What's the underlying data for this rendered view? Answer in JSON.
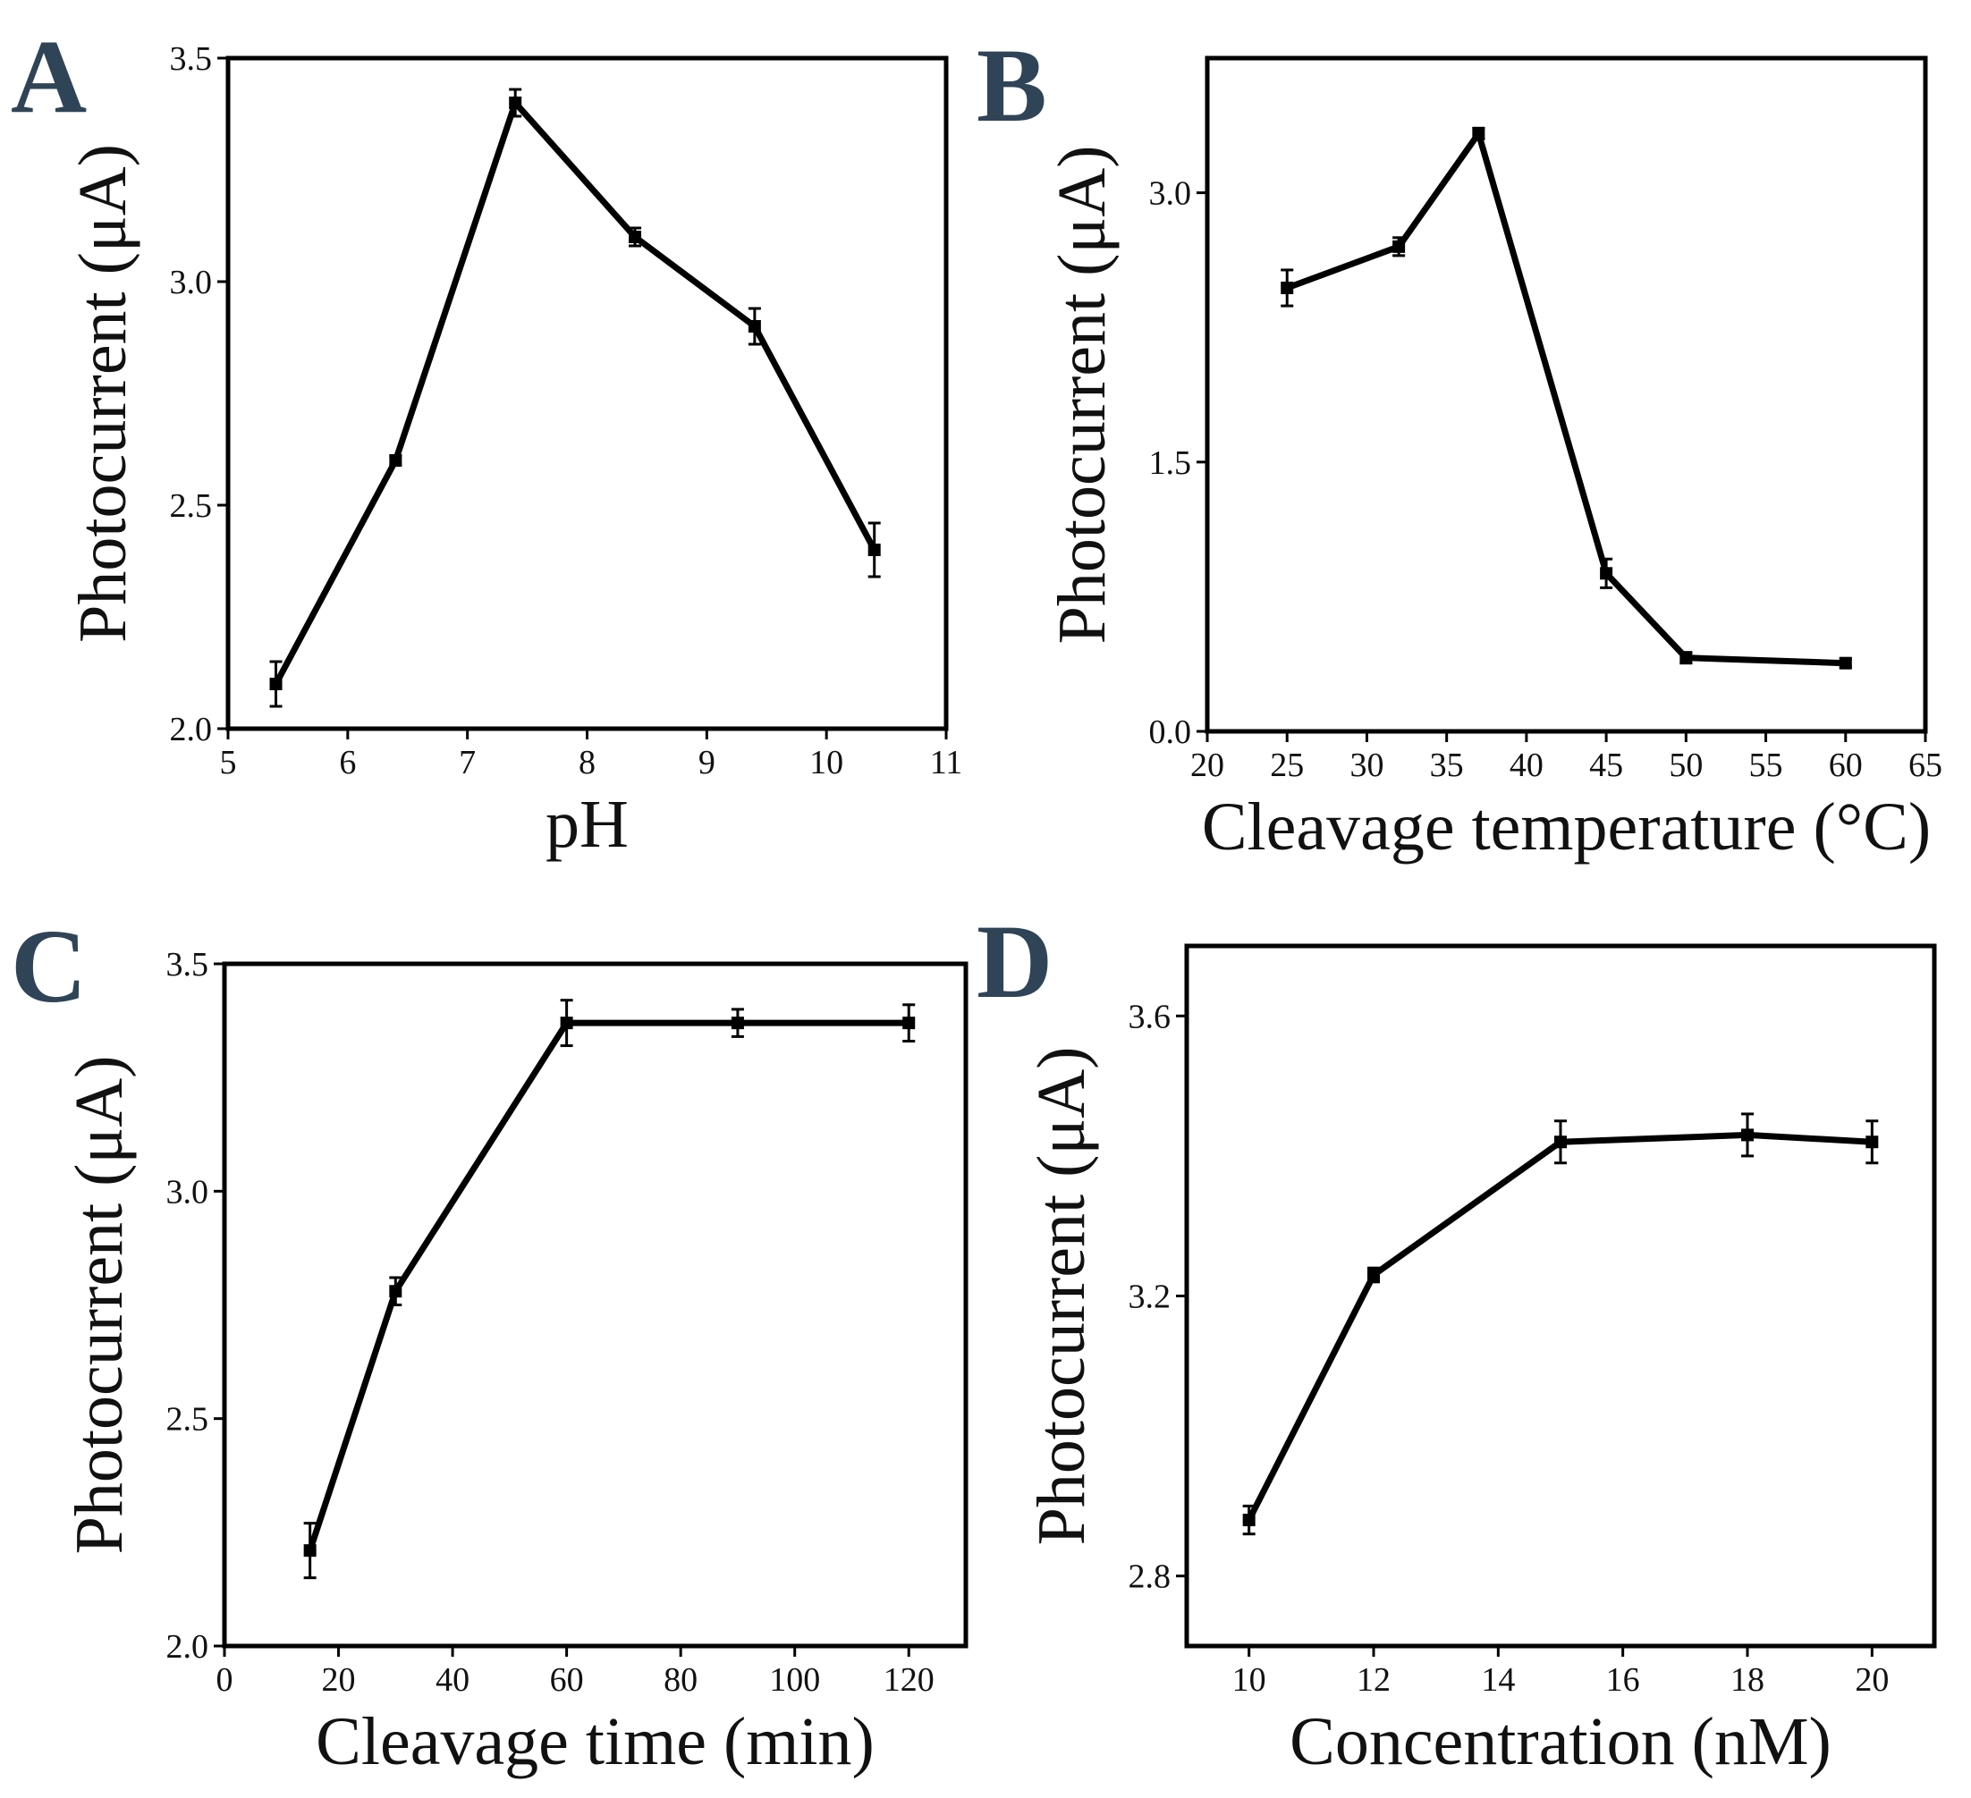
{
  "colors": {
    "line": "#000000",
    "panel_letter": "#2f4457",
    "background": "#ffffff"
  },
  "chart_data": [
    {
      "panel": "A",
      "type": "line",
      "xlabel": "pH",
      "ylabel": "Photocurrent (μA)",
      "xlim": [
        5,
        11
      ],
      "ylim": [
        2.0,
        3.5
      ],
      "xticks": [
        5,
        6,
        7,
        8,
        9,
        10,
        11
      ],
      "xtick_labels": [
        "5",
        "6",
        "7",
        "8",
        "9",
        "10",
        "11"
      ],
      "yticks": [
        2.0,
        2.5,
        3.0,
        3.5
      ],
      "ytick_labels": [
        "2.0",
        "2.5",
        "3.0",
        "3.5"
      ],
      "grid": false,
      "marker": "square",
      "series": [
        {
          "x": [
            5.4,
            6.4,
            7.4,
            8.4,
            9.4,
            10.4
          ],
          "y": [
            2.1,
            2.6,
            3.4,
            3.1,
            2.9,
            2.4
          ],
          "yerr": [
            0.05,
            0.01,
            0.03,
            0.02,
            0.04,
            0.06
          ]
        }
      ]
    },
    {
      "panel": "B",
      "type": "line",
      "xlabel": "Cleavage temperature (°C)",
      "ylabel": "Photocurrent (μA)",
      "xlim": [
        20,
        65
      ],
      "ylim": [
        0.0,
        3.75
      ],
      "xticks": [
        20,
        25,
        30,
        35,
        40,
        45,
        50,
        55,
        60,
        65
      ],
      "xtick_labels": [
        "20",
        "25",
        "30",
        "35",
        "40",
        "45",
        "50",
        "55",
        "60",
        "65"
      ],
      "yticks": [
        0.0,
        1.5,
        3.0
      ],
      "ytick_labels": [
        "0.0",
        "1.5",
        "3.0"
      ],
      "grid": false,
      "marker": "square",
      "series": [
        {
          "x": [
            25,
            32,
            37,
            45,
            50,
            60
          ],
          "y": [
            2.47,
            2.7,
            3.33,
            0.88,
            0.41,
            0.38
          ],
          "yerr": [
            0.1,
            0.05,
            0.03,
            0.08,
            0.03,
            0.02
          ]
        }
      ]
    },
    {
      "panel": "C",
      "type": "line",
      "xlabel": "Cleavage time (min)",
      "ylabel": "Photocurrent (μA)",
      "xlim": [
        0,
        130
      ],
      "ylim": [
        2.0,
        3.5
      ],
      "xticks": [
        0,
        20,
        40,
        60,
        80,
        100,
        120
      ],
      "xtick_labels": [
        "0",
        "20",
        "40",
        "60",
        "80",
        "100",
        "120"
      ],
      "yticks": [
        2.0,
        2.5,
        3.0,
        3.5
      ],
      "ytick_labels": [
        "2.0",
        "2.5",
        "3.0",
        "3.5"
      ],
      "grid": false,
      "marker": "square",
      "series": [
        {
          "x": [
            15,
            30,
            60,
            90,
            120
          ],
          "y": [
            2.21,
            2.78,
            3.37,
            3.37,
            3.37
          ],
          "yerr": [
            0.06,
            0.03,
            0.05,
            0.03,
            0.04
          ]
        }
      ]
    },
    {
      "panel": "D",
      "type": "line",
      "xlabel": "Concentration (nM)",
      "ylabel": "Photocurrent (μA)",
      "xlim": [
        9,
        21
      ],
      "ylim": [
        2.7,
        3.7
      ],
      "xticks": [
        10,
        12,
        14,
        16,
        18,
        20
      ],
      "xtick_labels": [
        "10",
        "12",
        "14",
        "16",
        "18",
        "20"
      ],
      "yticks": [
        2.8,
        3.2,
        3.6
      ],
      "ytick_labels": [
        "2.8",
        "3.2",
        "3.6"
      ],
      "grid": false,
      "marker": "square",
      "series": [
        {
          "x": [
            10,
            12,
            15,
            18,
            20
          ],
          "y": [
            2.88,
            3.23,
            3.42,
            3.43,
            3.42
          ],
          "yerr": [
            0.02,
            0.01,
            0.03,
            0.03,
            0.03
          ]
        }
      ]
    }
  ]
}
